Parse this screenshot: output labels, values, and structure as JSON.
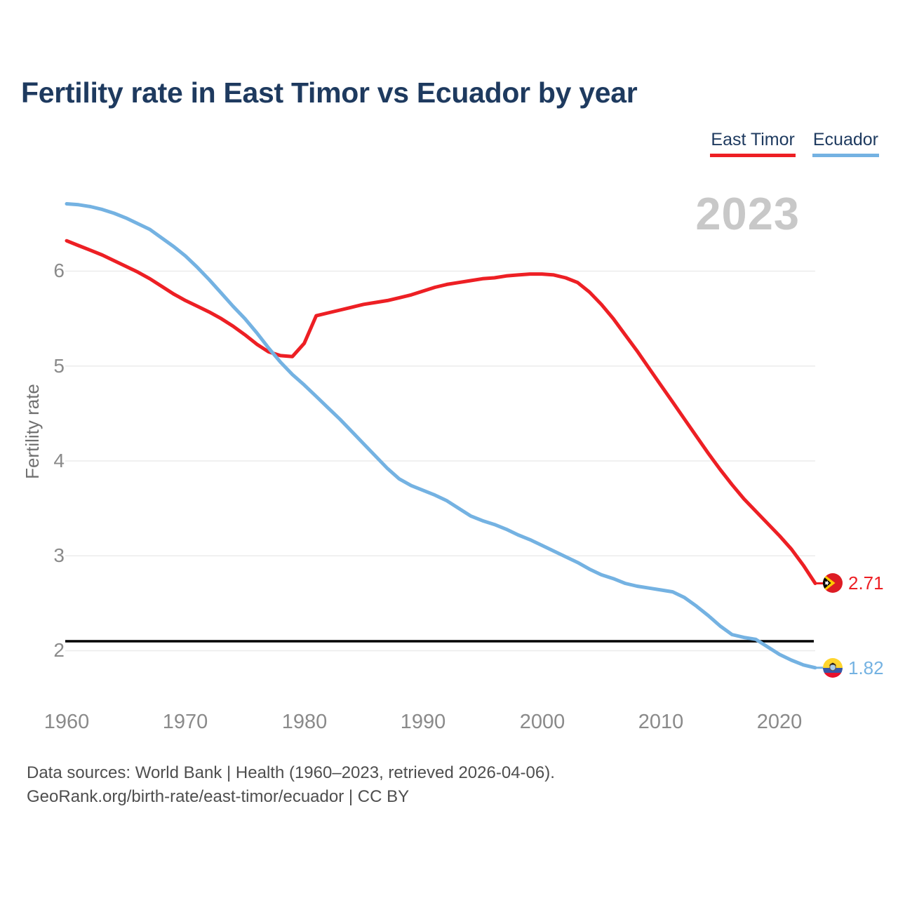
{
  "title": "Fertility rate in East Timor vs Ecuador by year",
  "watermark": "2023",
  "legend": {
    "items": [
      {
        "label": "East Timor",
        "color": "#ed1f24"
      },
      {
        "label": "Ecuador",
        "color": "#74b2e2"
      }
    ]
  },
  "y_axis": {
    "label": "Fertility rate",
    "ticks": [
      "6",
      "5",
      "4",
      "3",
      "2"
    ]
  },
  "x_axis": {
    "ticks": [
      "1960",
      "1970",
      "1980",
      "1990",
      "2000",
      "2010",
      "2020"
    ]
  },
  "end_markers": [
    {
      "series": "East Timor",
      "value": "2.71",
      "color": "#ed1f24",
      "flag": "east-timor-flag"
    },
    {
      "series": "Ecuador",
      "value": "1.82",
      "color": "#74b2e2",
      "flag": "ecuador-flag"
    }
  ],
  "footer": {
    "line1": "Data sources: World Bank | Health (1960–2023, retrieved 2026-04-06).",
    "line2": "GeoRank.org/birth-rate/east-timor/ecuador | CC BY"
  },
  "colors": {
    "title": "#1e3a5f",
    "axis_text": "#8a8a8a",
    "gridline": "#ebebeb",
    "watermark": "#c8c8c8",
    "reference_line": "#000000",
    "east_timor": "#ed1f24",
    "ecuador": "#74b2e2"
  },
  "chart_data": {
    "type": "line",
    "title": "Fertility rate in East Timor vs Ecuador by year",
    "xlabel": "",
    "ylabel": "Fertility rate",
    "xlim": [
      1960,
      2023
    ],
    "ylim": [
      1.55,
      6.95
    ],
    "x_ticks": [
      1960,
      1970,
      1980,
      1990,
      2000,
      2010,
      2020
    ],
    "y_ticks": [
      2,
      3,
      4,
      5,
      6
    ],
    "grid": "horizontal",
    "legend_position": "top-right",
    "reference_line": {
      "value": 2.1,
      "color": "#000000"
    },
    "x": [
      1960,
      1961,
      1962,
      1963,
      1964,
      1965,
      1966,
      1967,
      1968,
      1969,
      1970,
      1971,
      1972,
      1973,
      1974,
      1975,
      1976,
      1977,
      1978,
      1979,
      1980,
      1981,
      1982,
      1983,
      1984,
      1985,
      1986,
      1987,
      1988,
      1989,
      1990,
      1991,
      1992,
      1993,
      1994,
      1995,
      1996,
      1997,
      1998,
      1999,
      2000,
      2001,
      2002,
      2003,
      2004,
      2005,
      2006,
      2007,
      2008,
      2009,
      2010,
      2011,
      2012,
      2013,
      2014,
      2015,
      2016,
      2017,
      2018,
      2019,
      2020,
      2021,
      2022,
      2023
    ],
    "series": [
      {
        "name": "East Timor",
        "color": "#ed1f24",
        "end_label": "2.71",
        "values": [
          6.32,
          6.27,
          6.22,
          6.17,
          6.11,
          6.05,
          5.99,
          5.92,
          5.84,
          5.76,
          5.69,
          5.63,
          5.57,
          5.5,
          5.42,
          5.33,
          5.23,
          5.15,
          5.11,
          5.1,
          5.24,
          5.53,
          5.56,
          5.59,
          5.62,
          5.65,
          5.67,
          5.69,
          5.72,
          5.75,
          5.79,
          5.83,
          5.86,
          5.88,
          5.9,
          5.92,
          5.93,
          5.95,
          5.96,
          5.97,
          5.97,
          5.96,
          5.93,
          5.88,
          5.78,
          5.65,
          5.5,
          5.33,
          5.16,
          4.98,
          4.8,
          4.62,
          4.44,
          4.26,
          4.08,
          3.91,
          3.75,
          3.6,
          3.47,
          3.34,
          3.21,
          3.07,
          2.9,
          2.71
        ]
      },
      {
        "name": "Ecuador",
        "color": "#74b2e2",
        "end_label": "1.82",
        "values": [
          6.71,
          6.7,
          6.68,
          6.65,
          6.61,
          6.56,
          6.5,
          6.44,
          6.35,
          6.26,
          6.16,
          6.04,
          5.91,
          5.77,
          5.63,
          5.5,
          5.35,
          5.19,
          5.04,
          4.91,
          4.8,
          4.68,
          4.56,
          4.44,
          4.31,
          4.18,
          4.05,
          3.92,
          3.81,
          3.74,
          3.69,
          3.64,
          3.58,
          3.5,
          3.42,
          3.37,
          3.33,
          3.28,
          3.22,
          3.17,
          3.11,
          3.05,
          2.99,
          2.93,
          2.86,
          2.8,
          2.76,
          2.71,
          2.68,
          2.66,
          2.64,
          2.62,
          2.56,
          2.47,
          2.37,
          2.26,
          2.17,
          2.14,
          2.12,
          2.04,
          1.96,
          1.9,
          1.85,
          1.82
        ]
      }
    ]
  }
}
